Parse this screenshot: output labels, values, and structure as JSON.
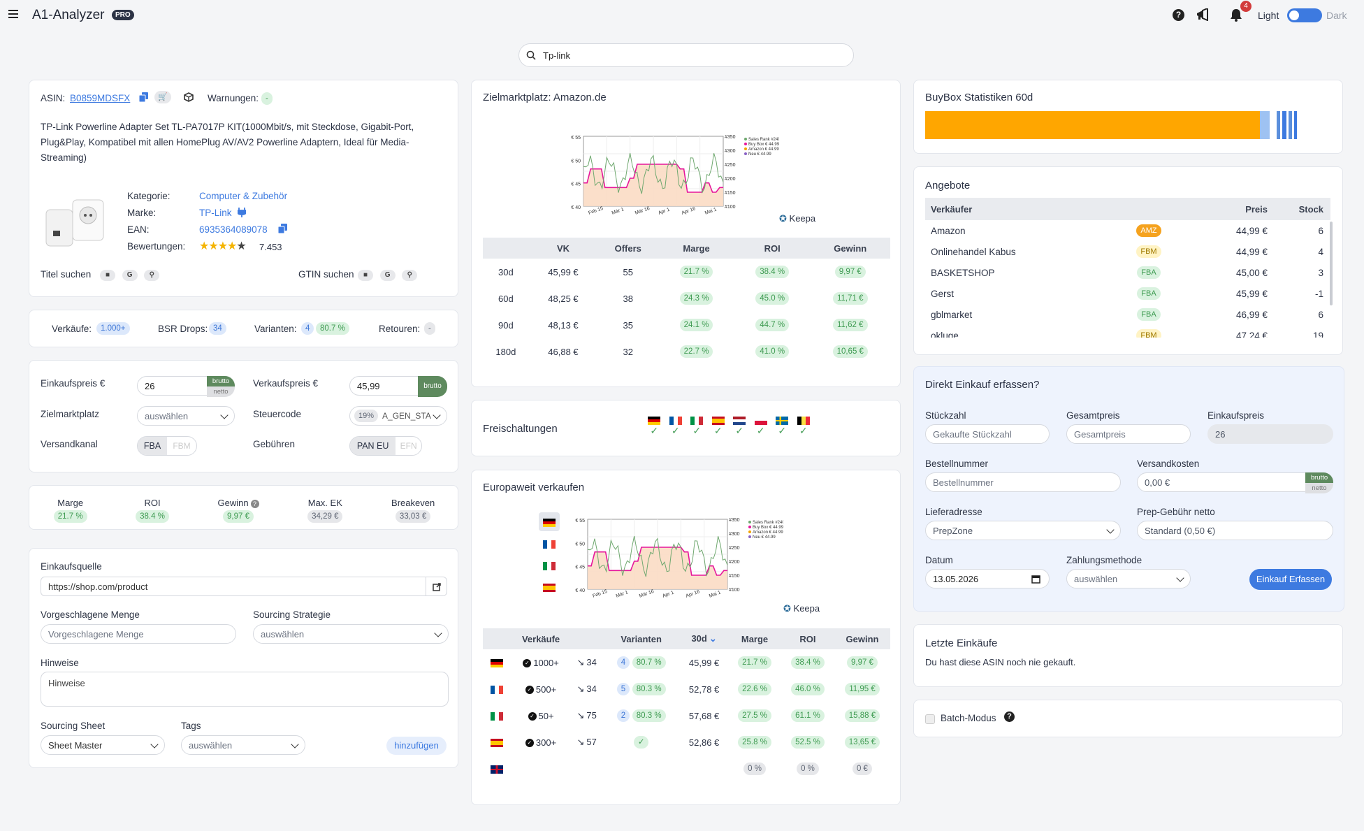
{
  "header": {
    "app_title": "A1-Analyzer",
    "pro_badge": "PRO",
    "notification_count": "4",
    "theme_light": "Light",
    "theme_dark": "Dark"
  },
  "search": {
    "value": "Tp-link"
  },
  "product": {
    "asin_label": "ASIN:",
    "asin": "B0859MDSFX",
    "warnings_label": "Warnungen:",
    "warnings_value": "-",
    "title": "TP-Link Powerline Adapter Set TL-PA7017P KIT(1000Mbit/s, mit Steckdose, Gigabit-Port, Plug&Play, Kompatibel mit allen HomePlug AV/AV2 Powerline Adaptern, Ideal für Media-Streaming)",
    "category_label": "Kategorie:",
    "category": "Computer & Zubehör",
    "brand_label": "Marke:",
    "brand": "TP-Link",
    "ean_label": "EAN:",
    "ean": "6935364089078",
    "ratings_label": "Bewertungen:",
    "ratings_count": "7.453",
    "rating_stars": 4,
    "title_search_label": "Titel suchen",
    "gtin_search_label": "GTIN suchen"
  },
  "stats_bar": {
    "sales_label": "Verkäufe:",
    "sales": "1.000+",
    "bsr_label": "BSR Drops:",
    "bsr": "34",
    "variants_label": "Varianten:",
    "variants": "4",
    "variants_pct": "80.7 %",
    "returns_label": "Retouren:",
    "returns": "-"
  },
  "pricing": {
    "buy_label": "Einkaufspreis €",
    "buy_value": "26",
    "brutto": "brutto",
    "netto": "netto",
    "sell_label": "Verkaufspreis €",
    "sell_value": "45,99",
    "market_label": "Zielmarktplatz",
    "market_placeholder": "auswählen",
    "tax_label": "Steuercode",
    "tax_pct": "19%",
    "tax_value": "A_GEN_STA",
    "channel_label": "Versandkanal",
    "channel_fba": "FBA",
    "channel_fbm": "FBM",
    "fees_label": "Gebühren",
    "fees_pan": "PAN EU",
    "fees_efn": "EFN"
  },
  "metrics": [
    {
      "label": "Marge",
      "value": "21.7 %",
      "style": "pg"
    },
    {
      "label": "ROI",
      "value": "38.4 %",
      "style": "pg"
    },
    {
      "label": "Gewinn",
      "value": "9,97 €",
      "style": "pg"
    },
    {
      "label": "Max. EK",
      "value": "34,29 €",
      "style": "pgrey"
    },
    {
      "label": "Breakeven",
      "value": "33,03 €",
      "style": "pgrey"
    }
  ],
  "sourcing": {
    "source_label": "Einkaufsquelle",
    "source_value": "https://shop.com/product",
    "qty_label": "Vorgeschlagene Menge",
    "qty_placeholder": "Vorgeschlagene Menge",
    "strategy_label": "Sourcing Strategie",
    "strategy_placeholder": "auswählen",
    "notes_label": "Hinweise",
    "notes_placeholder": "Hinweise",
    "sheet_label": "Sourcing Sheet",
    "sheet_value": "Sheet Master",
    "tags_label": "Tags",
    "tags_placeholder": "auswählen",
    "add_button": "hinzufügen"
  },
  "target": {
    "title": "Zielmarktplatz: Amazon.de",
    "keepa": "Keepa",
    "legend": [
      "Sales Rank #240",
      "Buy Box € 44.99",
      "Amazon € 44.99",
      "Neu € 44.99"
    ],
    "y_left": [
      "€ 55",
      "€ 50",
      "€ 45",
      "€ 40"
    ],
    "y_right": [
      "#350",
      "#300",
      "#250",
      "#200",
      "#150",
      "#100"
    ],
    "x_labels": [
      "Feb 15",
      "Mär 1",
      "Mär 16",
      "Apr 1",
      "Apr 16",
      "Mai 1"
    ],
    "headers": [
      "",
      "VK",
      "Offers",
      "Marge",
      "ROI",
      "Gewinn"
    ],
    "rows": [
      {
        "period": "30d",
        "vk": "45,99 €",
        "offers": "55",
        "marge": "21.7 %",
        "roi": "38.4 %",
        "gewinn": "9,97 €"
      },
      {
        "period": "60d",
        "vk": "48,25 €",
        "offers": "38",
        "marge": "24.3 %",
        "roi": "45.0 %",
        "gewinn": "11,71 €"
      },
      {
        "period": "90d",
        "vk": "48,13 €",
        "offers": "35",
        "marge": "24.1 %",
        "roi": "44.7 %",
        "gewinn": "11,62 €"
      },
      {
        "period": "180d",
        "vk": "46,88 €",
        "offers": "32",
        "marge": "22.7 %",
        "roi": "41.0 %",
        "gewinn": "10,65 €"
      }
    ]
  },
  "unlocks": {
    "title": "Freischaltungen",
    "flags": [
      "de",
      "fr",
      "it",
      "es",
      "nl",
      "pl",
      "se",
      "be"
    ]
  },
  "europe": {
    "title": "Europaweit verkaufen",
    "headers": [
      "",
      "Verkäufe",
      "",
      "Varianten",
      "30d",
      "Marge",
      "ROI",
      "Gewinn"
    ],
    "rows": [
      {
        "flag": "de",
        "sales": "1000+",
        "bsr": "34",
        "var_n": "4",
        "var_pct": "80.7 %",
        "price": "45,99 €",
        "marge": "21.7 %",
        "roi": "38.4 %",
        "gewinn": "9,97 €"
      },
      {
        "flag": "fr",
        "sales": "500+",
        "bsr": "34",
        "var_n": "5",
        "var_pct": "80.3 %",
        "price": "52,78 €",
        "marge": "22.6 %",
        "roi": "46.0 %",
        "gewinn": "11,95 €"
      },
      {
        "flag": "it",
        "sales": "50+",
        "bsr": "75",
        "var_n": "2",
        "var_pct": "80.3 %",
        "price": "57,68 €",
        "marge": "27.5 %",
        "roi": "61.1 %",
        "gewinn": "15,88 €"
      },
      {
        "flag": "es",
        "sales": "300+",
        "bsr": "57",
        "var_n": "",
        "var_pct": "",
        "price": "52,86 €",
        "marge": "25.8 %",
        "roi": "52.5 %",
        "gewinn": "13,65 €"
      },
      {
        "flag": "gb",
        "sales": "",
        "bsr": "",
        "var_n": "",
        "var_pct": "",
        "price": "",
        "marge": "0 %",
        "roi": "0 %",
        "gewinn": "0 €"
      }
    ]
  },
  "buybox": {
    "title": "BuyBox Statistiken 60d",
    "amazon_share": 0.845
  },
  "offers": {
    "title": "Angebote",
    "headers": [
      "Verkäufer",
      "",
      "Preis",
      "Stock"
    ],
    "rows": [
      {
        "seller": "Amazon",
        "type": "AMZ",
        "price": "44,99 €",
        "stock": "6"
      },
      {
        "seller": "Onlinehandel Kabus",
        "type": "FBM",
        "price": "44,99 €",
        "stock": "4"
      },
      {
        "seller": "BASKETSHOP",
        "type": "FBA",
        "price": "45,00 €",
        "stock": "3"
      },
      {
        "seller": "Gerst",
        "type": "FBA",
        "price": "45,99 €",
        "stock": "-1"
      },
      {
        "seller": "gblmarket",
        "type": "FBA",
        "price": "46,99 €",
        "stock": "6"
      },
      {
        "seller": "okluge",
        "type": "FBM",
        "price": "47,24 €",
        "stock": "19"
      }
    ]
  },
  "purchase": {
    "title": "Direkt Einkauf erfassen?",
    "qty_label": "Stückzahl",
    "qty_placeholder": "Gekaufte Stückzahl",
    "total_label": "Gesamtpreis",
    "total_placeholder": "Gesamtpreis",
    "unit_label": "Einkaufspreis",
    "unit_value": "26",
    "order_label": "Bestellnummer",
    "order_placeholder": "Bestellnummer",
    "ship_label": "Versandkosten",
    "ship_value": "0,00 €",
    "address_label": "Lieferadresse",
    "address_value": "PrepZone",
    "prep_label": "Prep-Gebühr netto",
    "prep_value": "Standard (0,50 €)",
    "date_label": "Datum",
    "date_value": "13.05.2026",
    "payment_label": "Zahlungsmethode",
    "payment_placeholder": "auswählen",
    "submit": "Einkauf Erfassen"
  },
  "recent": {
    "title": "Letzte Einkäufe",
    "text": "Du hast diese ASIN noch nie gekauft."
  },
  "batch": {
    "label": "Batch-Modus"
  },
  "colors": {
    "accent": "#3d7ae0",
    "orange": "#ffa600",
    "green": "#4aa05c",
    "magenta": "#e6179b"
  }
}
